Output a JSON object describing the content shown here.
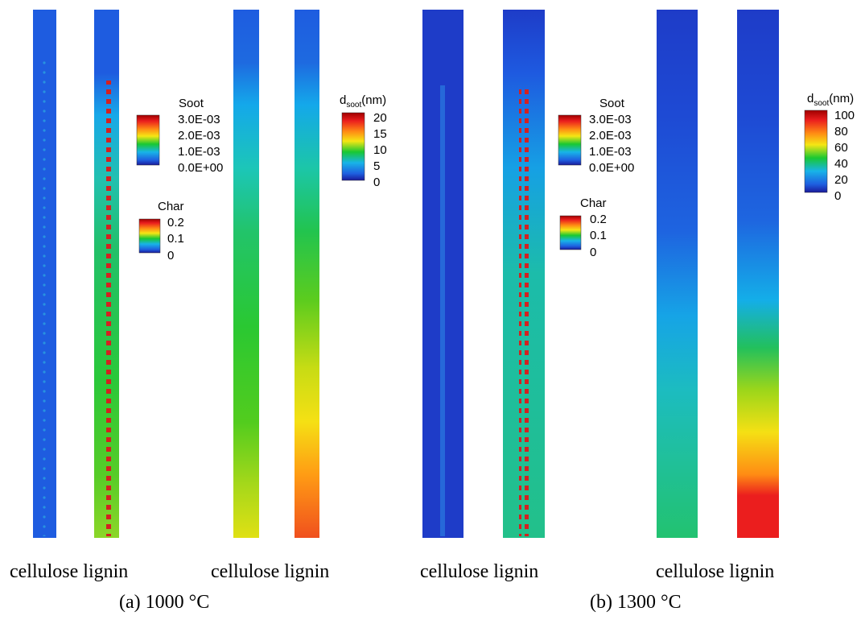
{
  "panels": [
    {
      "id": "a",
      "caption": "(a) 1000 °C",
      "column_labels": [
        "cellulose lignin",
        "cellulose lignin"
      ],
      "legends": [
        {
          "title": "Soot",
          "labels": [
            "3.0E-03",
            "2.0E-03",
            "1.0E-03",
            "0.0E+00"
          ]
        },
        {
          "title": "Char",
          "labels": [
            "0.2",
            "0.1",
            "0"
          ]
        },
        {
          "title_main": "d",
          "title_sub": "soot",
          "title_unit": "(nm)",
          "labels": [
            "20",
            "15",
            "10",
            "5",
            "0"
          ]
        }
      ]
    },
    {
      "id": "b",
      "caption": "(b) 1300 °C",
      "column_labels": [
        "cellulose lignin",
        "cellulose lignin"
      ],
      "legends": [
        {
          "title": "Soot",
          "labels": [
            "3.0E-03",
            "2.0E-03",
            "1.0E-03",
            "0.0E+00"
          ]
        },
        {
          "title": "Char",
          "labels": [
            "0.2",
            "0.1",
            "0"
          ]
        },
        {
          "title_main": "d",
          "title_sub": "soot",
          "title_unit": "(nm)",
          "labels": [
            "100",
            "80",
            "60",
            "40",
            "20",
            "0"
          ]
        }
      ]
    }
  ],
  "colors": {
    "deep_blue": "#1e3cc8",
    "blue": "#1e5fe0",
    "cyan": "#18b4e8",
    "teal": "#22c08a",
    "green": "#19c832",
    "yellow": "#f5e614",
    "orange": "#ff8c14",
    "red": "#eb1e1e",
    "dark_red": "#a00000"
  }
}
